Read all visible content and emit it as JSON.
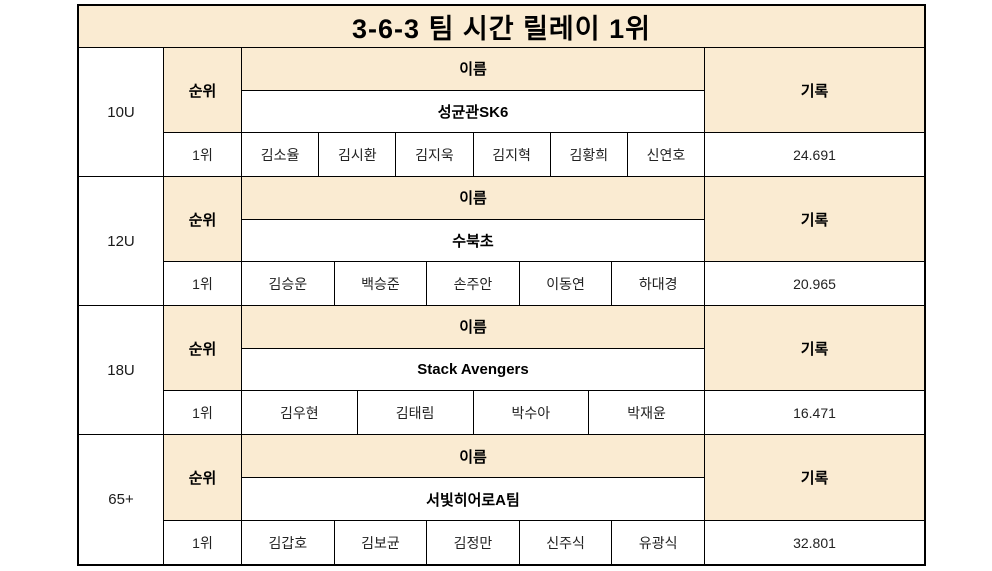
{
  "title": "3-6-3 팀 시간 릴레이 1위",
  "headers": {
    "rank": "순위",
    "name": "이름",
    "record": "기록"
  },
  "colors": {
    "header_bg": "#faebd2",
    "border_color": "#000000"
  },
  "sections": [
    {
      "age": "10U",
      "rank": "1위",
      "team": "성균관SK6",
      "players": [
        "김소율",
        "김시환",
        "김지욱",
        "김지혁",
        "김황희",
        "신연호"
      ],
      "record": "24.691"
    },
    {
      "age": "12U",
      "rank": "1위",
      "team": "수북초",
      "players": [
        "김승운",
        "백승준",
        "손주안",
        "이동연",
        "하대경"
      ],
      "record": "20.965"
    },
    {
      "age": "18U",
      "rank": "1위",
      "team": "Stack Avengers",
      "players": [
        "김우현",
        "김태림",
        "박수아",
        "박재윤"
      ],
      "record": "16.471"
    },
    {
      "age": "65+",
      "rank": "1위",
      "team": "서빛히어로A팀",
      "players": [
        "김갑호",
        "김보균",
        "김정만",
        "신주식",
        "유광식"
      ],
      "record": "32.801"
    }
  ]
}
